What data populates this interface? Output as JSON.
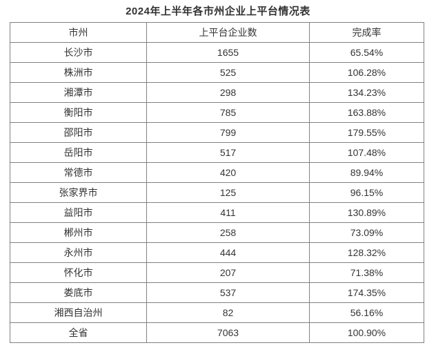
{
  "title": "2024年上半年各市州企业上平台情况表",
  "table": {
    "columns": [
      "市州",
      "上平台企业数",
      "完成率"
    ],
    "rows": [
      [
        "长沙市",
        "1655",
        "65.54%"
      ],
      [
        "株洲市",
        "525",
        "106.28%"
      ],
      [
        "湘潭市",
        "298",
        "134.23%"
      ],
      [
        "衡阳市",
        "785",
        "163.88%"
      ],
      [
        "邵阳市",
        "799",
        "179.55%"
      ],
      [
        "岳阳市",
        "517",
        "107.48%"
      ],
      [
        "常德市",
        "420",
        "89.94%"
      ],
      [
        "张家界市",
        "125",
        "96.15%"
      ],
      [
        "益阳市",
        "411",
        "130.89%"
      ],
      [
        "郴州市",
        "258",
        "73.09%"
      ],
      [
        "永州市",
        "444",
        "128.32%"
      ],
      [
        "怀化市",
        "207",
        "71.38%"
      ],
      [
        "娄底市",
        "537",
        "174.35%"
      ],
      [
        "湘西自治州",
        "82",
        "56.16%"
      ],
      [
        "全省",
        "7063",
        "100.90%"
      ]
    ]
  },
  "colors": {
    "text": "#333333",
    "border": "#808080",
    "background": "#ffffff"
  },
  "chart_data": {
    "type": "table",
    "title": "2024年上半年各市州企业上平台情况表",
    "columns": [
      "市州",
      "上平台企业数",
      "完成率"
    ],
    "rows": [
      {
        "region": "长沙市",
        "enterprises_on_platform": 1655,
        "completion_rate_pct": 65.54
      },
      {
        "region": "株洲市",
        "enterprises_on_platform": 525,
        "completion_rate_pct": 106.28
      },
      {
        "region": "湘潭市",
        "enterprises_on_platform": 298,
        "completion_rate_pct": 134.23
      },
      {
        "region": "衡阳市",
        "enterprises_on_platform": 785,
        "completion_rate_pct": 163.88
      },
      {
        "region": "邵阳市",
        "enterprises_on_platform": 799,
        "completion_rate_pct": 179.55
      },
      {
        "region": "岳阳市",
        "enterprises_on_platform": 517,
        "completion_rate_pct": 107.48
      },
      {
        "region": "常德市",
        "enterprises_on_platform": 420,
        "completion_rate_pct": 89.94
      },
      {
        "region": "张家界市",
        "enterprises_on_platform": 125,
        "completion_rate_pct": 96.15
      },
      {
        "region": "益阳市",
        "enterprises_on_platform": 411,
        "completion_rate_pct": 130.89
      },
      {
        "region": "郴州市",
        "enterprises_on_platform": 258,
        "completion_rate_pct": 73.09
      },
      {
        "region": "永州市",
        "enterprises_on_platform": 444,
        "completion_rate_pct": 128.32
      },
      {
        "region": "怀化市",
        "enterprises_on_platform": 207,
        "completion_rate_pct": 71.38
      },
      {
        "region": "娄底市",
        "enterprises_on_platform": 537,
        "completion_rate_pct": 174.35
      },
      {
        "region": "湘西自治州",
        "enterprises_on_platform": 82,
        "completion_rate_pct": 56.16
      },
      {
        "region": "全省",
        "enterprises_on_platform": 7063,
        "completion_rate_pct": 100.9
      }
    ]
  }
}
